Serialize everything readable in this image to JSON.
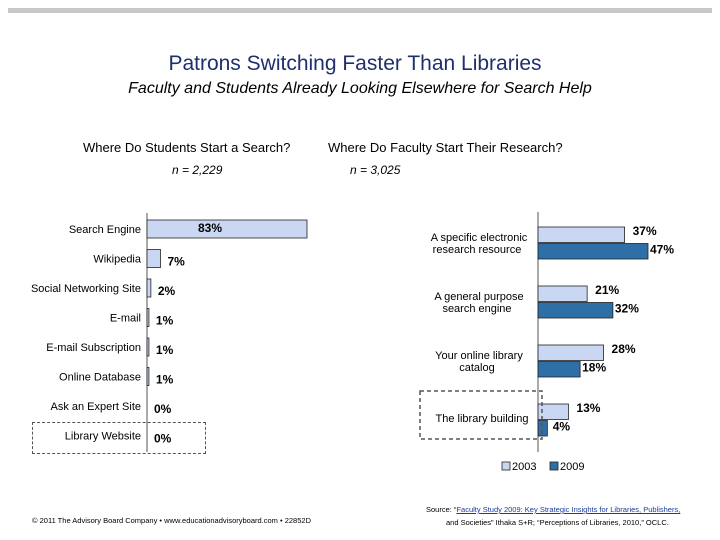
{
  "header": {
    "title": "Patrons Switching Faster Than Libraries",
    "subtitle": "Faculty and Students Already Looking Elsewhere for Search Help"
  },
  "chart_data": [
    {
      "type": "bar",
      "orientation": "horizontal",
      "title": "Where Do Students Start a Search?",
      "n_label": "n = 2,229",
      "categories": [
        "Search Engine",
        "Wikipedia",
        "Social Networking Site",
        "E-mail",
        "E-mail Subscription",
        "Online Database",
        "Ask an Expert Site",
        "Library Website"
      ],
      "values": [
        83,
        7,
        2,
        1,
        1,
        1,
        0,
        0
      ],
      "value_labels": [
        "83%",
        "7%",
        "2%",
        "1%",
        "1%",
        "1%",
        "0%",
        "0%"
      ],
      "bar_color": "#c9d7f2",
      "highlighted_category": "Library Website"
    },
    {
      "type": "bar",
      "orientation": "horizontal",
      "title": "Where Do Faculty Start Their Research?",
      "n_label": "n = 3,025",
      "categories": [
        "A specific electronic research resource",
        "A general purpose search engine",
        "Your online library catalog",
        "The library building"
      ],
      "category_lines": [
        [
          "A specific electronic",
          "research resource"
        ],
        [
          "A general purpose",
          "search engine"
        ],
        [
          "Your online library",
          "catalog"
        ],
        [
          "The library building"
        ]
      ],
      "series": [
        {
          "name": "2003",
          "values": [
            37,
            21,
            28,
            13
          ],
          "labels": [
            "37%",
            "21%",
            "28%",
            "13%"
          ],
          "color": "#c9d7f2"
        },
        {
          "name": "2009",
          "values": [
            47,
            32,
            18,
            4
          ],
          "labels": [
            "47%",
            "32%",
            "18%",
            "4%"
          ],
          "color": "#2e6fa8"
        }
      ],
      "legend_position": "bottom",
      "highlighted_category": "The library building"
    }
  ],
  "footer": {
    "copyright": "© 2011 The Advisory Board Company • www.educationadvisoryboard.com • 22852D",
    "source_prefix": "Source: “",
    "source_link": "Faculty Study 2009: Key Strategic Insights for Libraries, Publishers,",
    "source_line2": "and Societies” Ithaka S+R; “Perceptions of Libraries, 2010,” OCLC."
  }
}
